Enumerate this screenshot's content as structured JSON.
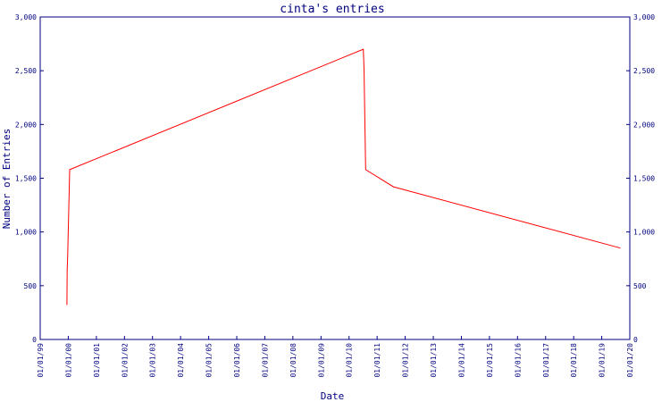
{
  "chart_data": {
    "type": "line",
    "title": "cinta's entries",
    "xlabel": "Date",
    "ylabel": "Number of Entries",
    "x_ticks": [
      "01/01/99",
      "01/01/00",
      "01/01/01",
      "01/01/02",
      "01/01/03",
      "01/01/04",
      "01/01/05",
      "01/01/06",
      "01/01/07",
      "01/01/08",
      "01/01/09",
      "01/01/10",
      "01/01/11",
      "01/01/12",
      "01/01/13",
      "01/01/14",
      "01/01/15",
      "01/01/16",
      "01/01/17",
      "01/01/18",
      "01/01/19",
      "01/01/20"
    ],
    "y_ticks": [
      0,
      500,
      1000,
      1500,
      2000,
      2500,
      3000
    ],
    "y_tick_labels": [
      "0",
      "500",
      "1,000",
      "1,500",
      "2,000",
      "2,500",
      "3,000"
    ],
    "ylim": [
      0,
      3000
    ],
    "xlim": [
      "1999-01-01",
      "2020-01-01"
    ],
    "grid": false,
    "series": [
      {
        "color": "#ff0000",
        "points": [
          {
            "x": "1999-12-15",
            "y": 320
          },
          {
            "x": "1999-12-18",
            "y": 650
          },
          {
            "x": "1999-12-24",
            "y": 760
          },
          {
            "x": "2000-01-05",
            "y": 1150
          },
          {
            "x": "2000-01-20",
            "y": 1580
          },
          {
            "x": "2010-07-05",
            "y": 2700
          },
          {
            "x": "2010-07-15",
            "y": 2520
          },
          {
            "x": "2010-08-05",
            "y": 1580
          },
          {
            "x": "2011-08-01",
            "y": 1420
          },
          {
            "x": "2019-09-01",
            "y": 850
          }
        ]
      }
    ],
    "colors": {
      "axis": "#000080",
      "text": "#000080",
      "line": "#ff0000",
      "background": "#ffffff"
    }
  }
}
